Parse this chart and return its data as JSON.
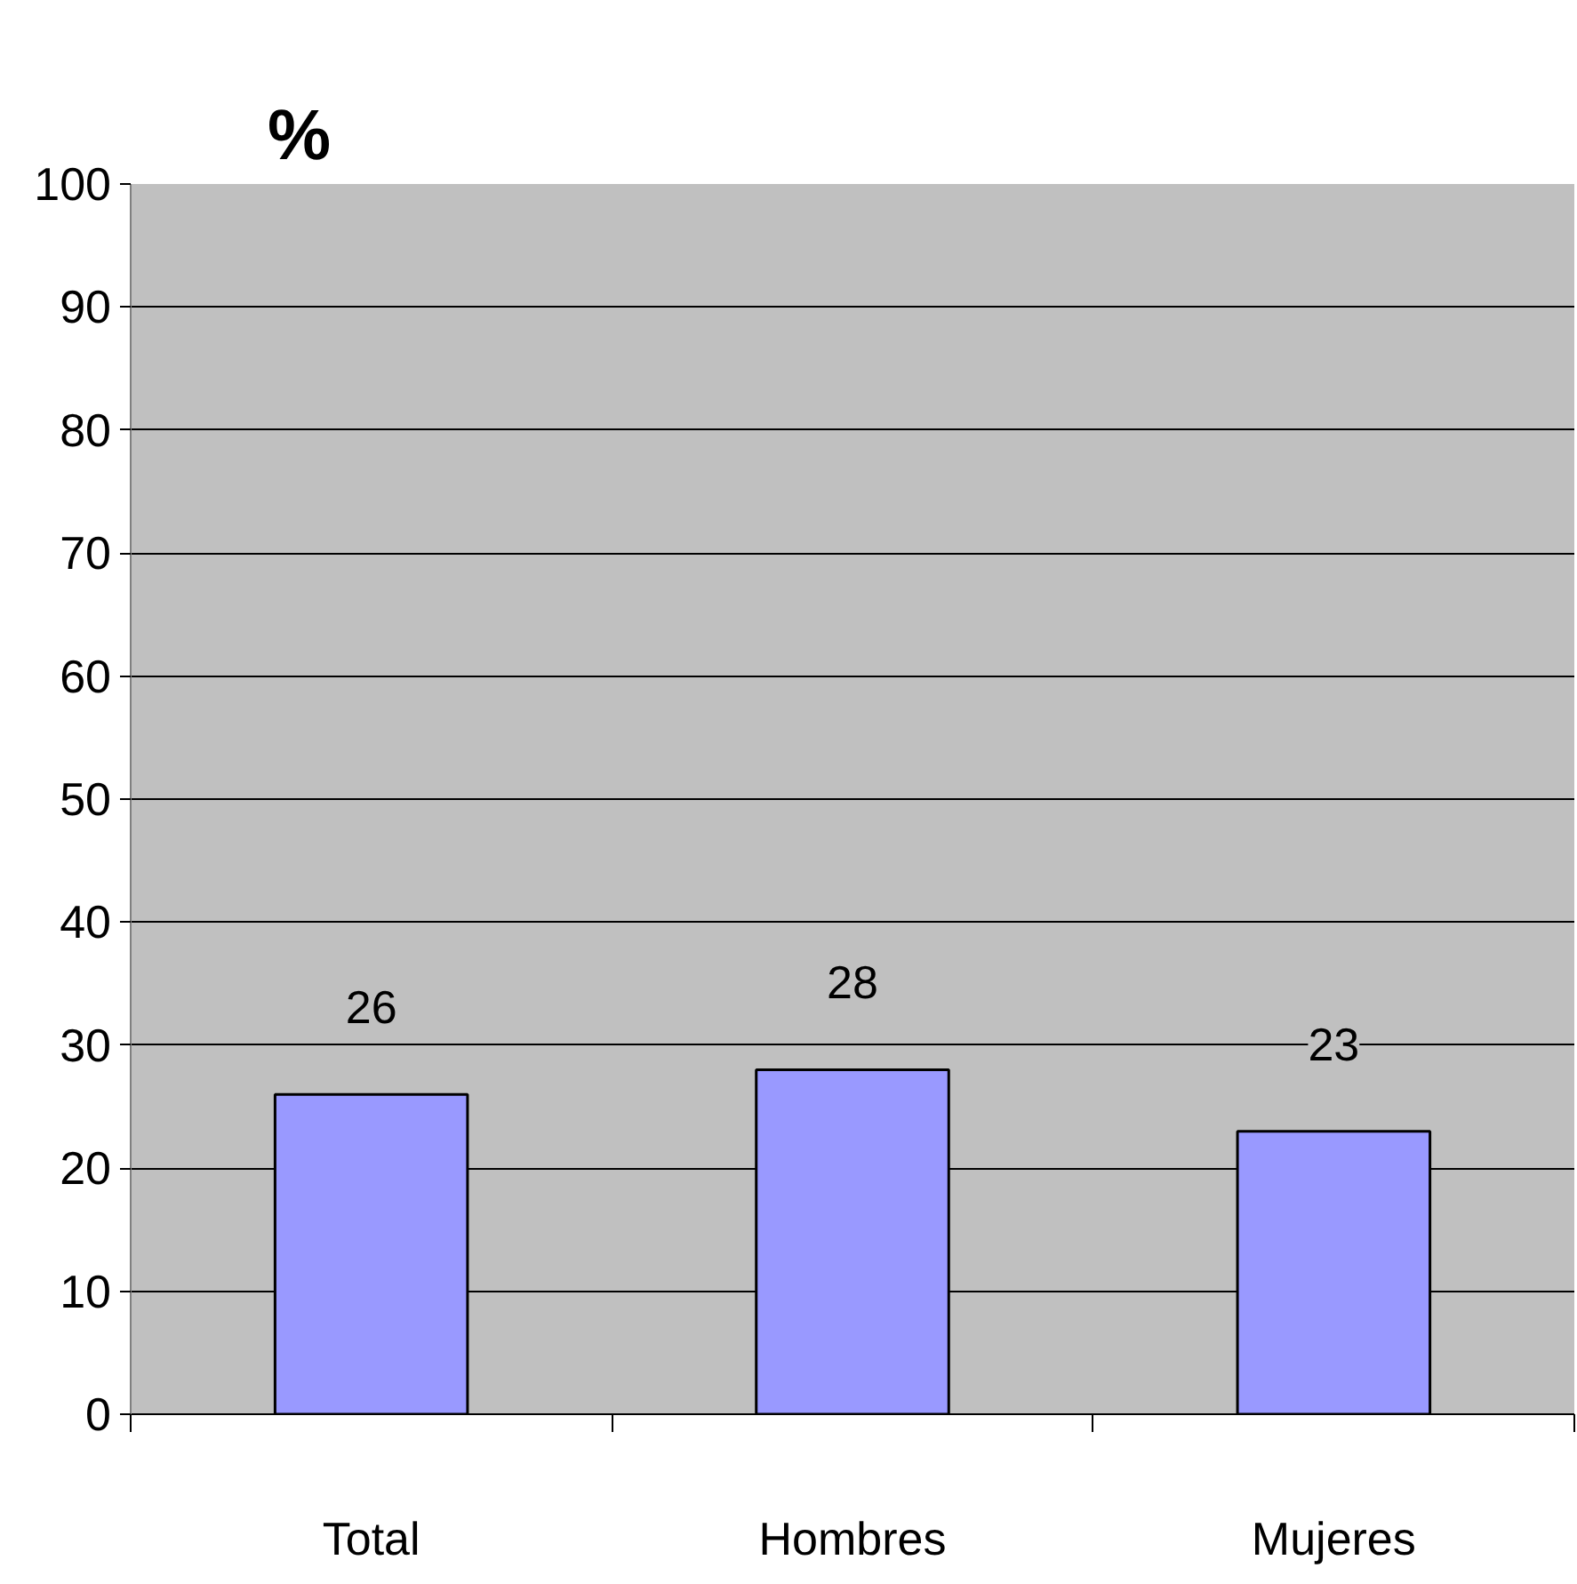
{
  "chart_data": {
    "type": "bar",
    "title": "%",
    "categories": [
      "Total",
      "Hombres",
      "Mujeres"
    ],
    "values": [
      26,
      28,
      23
    ],
    "color": "#9999ff",
    "ylim": [
      0,
      100
    ],
    "yticks": [
      0,
      10,
      20,
      30,
      40,
      50,
      60,
      70,
      80,
      90,
      100
    ],
    "grid": "y",
    "data_labels": true
  }
}
